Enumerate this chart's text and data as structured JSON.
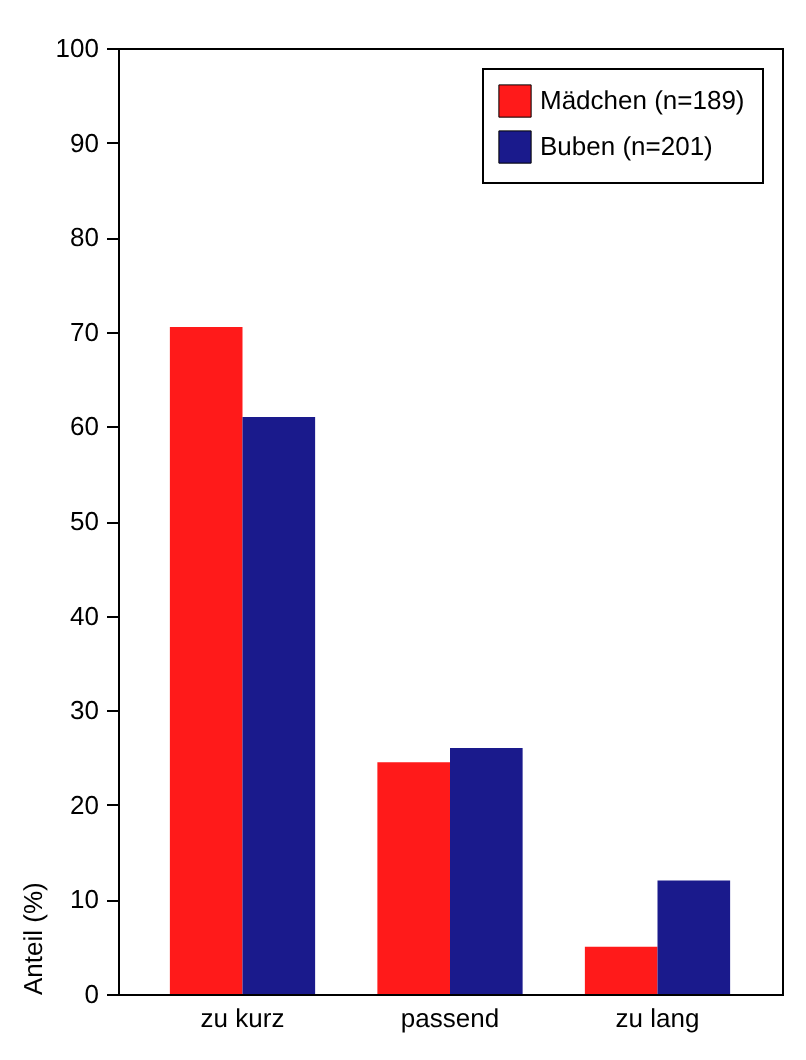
{
  "chart_data": {
    "type": "bar",
    "ylabel": "Anteil (%)",
    "categories": [
      "zu kurz",
      "passend",
      "zu lang"
    ],
    "series": [
      {
        "name": "Mädchen (n=189)",
        "color": "#ff1a1a",
        "values": [
          70.5,
          24.5,
          5
        ]
      },
      {
        "name": "Buben (n=201)",
        "color": "#1a1a8c",
        "values": [
          61,
          26,
          12
        ]
      }
    ],
    "ylim": [
      0,
      100
    ],
    "yticks": [
      0,
      10,
      20,
      30,
      40,
      50,
      60,
      70,
      80,
      90,
      100
    ],
    "grid": false,
    "legend": "top right"
  }
}
